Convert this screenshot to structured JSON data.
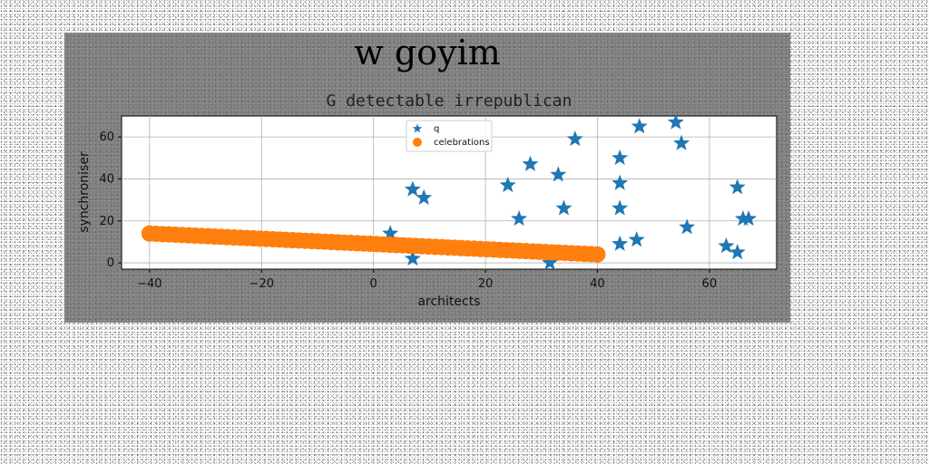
{
  "colors": {
    "series_q": "#1f77b4",
    "series_celebrations": "#ff7f0e",
    "figure_bg": "#7f7f7f",
    "axes_bg": "#ffffff",
    "grid": "#b0b0b0"
  },
  "chart_data": {
    "type": "scatter",
    "suptitle": "w goyim",
    "title": "G detectable irrepublican",
    "xlabel": "architects",
    "ylabel": "synchroniser",
    "xlim": [
      -45,
      72
    ],
    "ylim": [
      -3,
      70
    ],
    "xticks": [
      -40,
      -20,
      0,
      20,
      40,
      60
    ],
    "yticks": [
      0,
      20,
      40,
      60
    ],
    "grid": true,
    "legend_position": "upper-center",
    "series": [
      {
        "name": "q",
        "marker": "star",
        "color": "#1f77b4",
        "points": [
          [
            3,
            14
          ],
          [
            7,
            2
          ],
          [
            7,
            35
          ],
          [
            9,
            31
          ],
          [
            24,
            37
          ],
          [
            26,
            21
          ],
          [
            28,
            47
          ],
          [
            31.5,
            0
          ],
          [
            33,
            42
          ],
          [
            34,
            26
          ],
          [
            36,
            59
          ],
          [
            44,
            50
          ],
          [
            44,
            38
          ],
          [
            44,
            26
          ],
          [
            44,
            9
          ],
          [
            47,
            11
          ],
          [
            47.5,
            65
          ],
          [
            54,
            67
          ],
          [
            55,
            57
          ],
          [
            56,
            17
          ],
          [
            63,
            8
          ],
          [
            65,
            5
          ],
          [
            65,
            36
          ],
          [
            66,
            21
          ],
          [
            67,
            21
          ]
        ]
      },
      {
        "name": "celebrations",
        "marker": "circle",
        "color": "#ff7f0e",
        "line": {
          "x_start": -40,
          "x_end": 40,
          "y_start": 14,
          "y_end": 4,
          "count": 70
        }
      }
    ]
  }
}
